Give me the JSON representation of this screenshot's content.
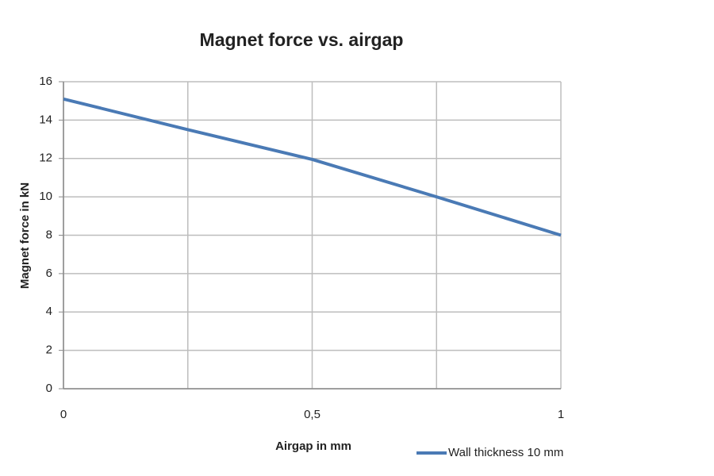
{
  "chart_data": {
    "type": "line",
    "title": "Magnet force vs. airgap",
    "x_label": "Airgap in mm",
    "y_label": "Magnet force in kN",
    "x": [
      0,
      0.25,
      0.5,
      0.75,
      1
    ],
    "series": [
      {
        "name": "Wall thickness 10 mm",
        "color": "#4a7ab5",
        "values": [
          15.1,
          13.5,
          11.95,
          10,
          8
        ]
      }
    ],
    "xlim": [
      0,
      1
    ],
    "xticks": [
      0,
      {
        "value": 0.5,
        "label": "0,5"
      },
      1
    ],
    "x_minor_grid": [
      0.25,
      0.75
    ],
    "ylim": [
      0,
      16
    ],
    "yticks": [
      0,
      2,
      4,
      6,
      8,
      10,
      12,
      14,
      16
    ],
    "grid": true,
    "legend": "bottom-right"
  }
}
